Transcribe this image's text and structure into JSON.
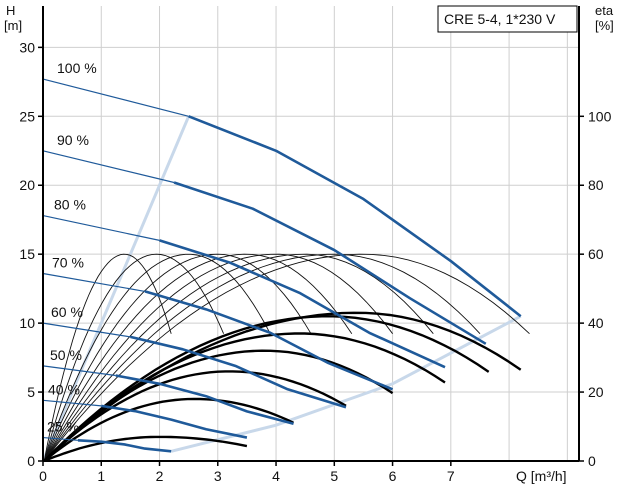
{
  "chart_data": {
    "type": "line",
    "title": "CRE 5-4, 1*230 V",
    "xlabel": "Q [m³/h]",
    "ylabel_left": "H\n[m]",
    "ylabel_right": "eta\n[%]",
    "xlim": [
      0,
      9.2
    ],
    "ylim_left": [
      0,
      33
    ],
    "ylim_right": [
      0,
      132
    ],
    "x_ticks": [
      0,
      1,
      2,
      3,
      4,
      5,
      6,
      7
    ],
    "x_tick_labels": [
      "0",
      "1",
      "2",
      "3",
      "4",
      "5",
      "6",
      "7"
    ],
    "y_left_ticks": [
      0,
      5,
      10,
      15,
      20,
      25,
      30
    ],
    "y_left_tick_labels": [
      "0",
      "5",
      "10",
      "15",
      "20",
      "25",
      "30"
    ],
    "y_right_ticks": [
      0,
      20,
      40,
      60,
      80,
      100
    ],
    "y_right_tick_labels": [
      "0",
      "20",
      "40",
      "60",
      "80",
      "100"
    ],
    "grid": true,
    "speed_labels": [
      "100 %",
      "90 %",
      "80 %",
      "70 %",
      "60 %",
      "50 %",
      "40 %",
      "25 %"
    ],
    "head_curves": [
      {
        "name": "100 %",
        "x": [
          0,
          2.5,
          4.0,
          5.5,
          7.0,
          8.2
        ],
        "y": [
          27.7,
          25.0,
          22.5,
          19.0,
          14.5,
          10.5
        ]
      },
      {
        "name": "90 %",
        "x": [
          0,
          2.25,
          3.6,
          5.0,
          6.3,
          7.6
        ],
        "y": [
          22.5,
          20.2,
          18.3,
          15.3,
          11.8,
          8.5
        ]
      },
      {
        "name": "80 %",
        "x": [
          0,
          2.0,
          3.2,
          4.4,
          5.6,
          6.9
        ],
        "y": [
          17.8,
          16.0,
          14.4,
          12.2,
          9.3,
          6.8
        ]
      },
      {
        "name": "70 %",
        "x": [
          0,
          1.75,
          2.8,
          3.9,
          4.9,
          6.0
        ],
        "y": [
          13.6,
          12.3,
          11.0,
          9.3,
          7.1,
          5.2
        ]
      },
      {
        "name": "60 %",
        "x": [
          0,
          1.5,
          2.4,
          3.3,
          4.2,
          5.2
        ],
        "y": [
          10.0,
          9.0,
          8.1,
          6.9,
          5.2,
          3.9
        ]
      },
      {
        "name": "50 %",
        "x": [
          0,
          1.25,
          2.0,
          2.8,
          3.5,
          4.3
        ],
        "y": [
          6.9,
          6.2,
          5.6,
          4.7,
          3.6,
          2.7
        ]
      },
      {
        "name": "40 %",
        "x": [
          0,
          1.0,
          1.6,
          2.2,
          2.8,
          3.5
        ],
        "y": [
          4.4,
          4.0,
          3.6,
          3.0,
          2.3,
          1.7
        ]
      },
      {
        "name": "25 %",
        "x": [
          0,
          0.6,
          1.0,
          1.4,
          1.75,
          2.2
        ],
        "y": [
          1.7,
          1.5,
          1.4,
          1.2,
          0.9,
          0.7
        ]
      }
    ],
    "efficiency_curves_thick": [
      {
        "x_start": 0.02,
        "x_peak": 5.4,
        "x_end": 8.2,
        "eta_peak": 43
      },
      {
        "x_start": 0.02,
        "x_peak": 4.9,
        "x_end": 7.65,
        "eta_peak": 42
      },
      {
        "x_start": 0.02,
        "x_peak": 4.4,
        "x_end": 6.9,
        "eta_peak": 37
      },
      {
        "x_start": 0.02,
        "x_peak": 3.8,
        "x_end": 6.0,
        "eta_peak": 32
      },
      {
        "x_start": 0.02,
        "x_peak": 3.2,
        "x_end": 5.2,
        "eta_peak": 26
      },
      {
        "x_start": 0.02,
        "x_peak": 2.6,
        "x_end": 4.3,
        "eta_peak": 18
      },
      {
        "x_start": 0.02,
        "x_peak": 2.0,
        "x_end": 3.5,
        "eta_peak": 7
      }
    ],
    "efficiency_curves_thin": [
      {
        "x_start": 0.02,
        "x_peak": 1.4,
        "x_end": 2.2,
        "eta_peak": 60
      },
      {
        "x_start": 0.02,
        "x_peak": 1.95,
        "x_end": 3.1,
        "eta_peak": 60
      },
      {
        "x_start": 0.02,
        "x_peak": 2.5,
        "x_end": 3.9,
        "eta_peak": 60
      },
      {
        "x_start": 0.02,
        "x_peak": 3.0,
        "x_end": 4.6,
        "eta_peak": 60
      },
      {
        "x_start": 0.02,
        "x_peak": 3.5,
        "x_end": 5.3,
        "eta_peak": 60
      },
      {
        "x_start": 0.02,
        "x_peak": 4.0,
        "x_end": 6.0,
        "eta_peak": 60
      },
      {
        "x_start": 0.02,
        "x_peak": 4.5,
        "x_end": 6.7,
        "eta_peak": 60
      },
      {
        "x_start": 0.02,
        "x_peak": 5.0,
        "x_end": 7.5,
        "eta_peak": 60
      },
      {
        "x_start": 0.02,
        "x_peak": 5.5,
        "x_end": 8.35,
        "eta_peak": 60
      }
    ],
    "envelope": {
      "upper": {
        "x": [
          0,
          2.5
        ],
        "y": [
          0,
          25
        ]
      },
      "lower": {
        "x": [
          2.2,
          4.0,
          6.0,
          8.2
        ],
        "y": [
          0.7,
          2.6,
          5.6,
          10.5
        ]
      }
    }
  }
}
